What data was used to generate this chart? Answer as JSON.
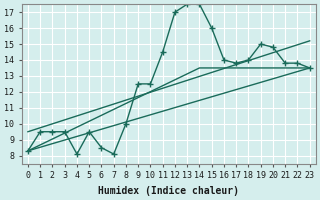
{
  "xlabel": "Humidex (Indice chaleur)",
  "ylabel": "",
  "bg_color": "#d5eeed",
  "grid_color": "#ffffff",
  "line_color": "#1a6b5a",
  "xlim": [
    -0.5,
    23.5
  ],
  "ylim": [
    7.5,
    17.5
  ],
  "xticks": [
    0,
    1,
    2,
    3,
    4,
    5,
    6,
    7,
    8,
    9,
    10,
    11,
    12,
    13,
    14,
    15,
    16,
    17,
    18,
    19,
    20,
    21,
    22,
    23
  ],
  "yticks": [
    8,
    9,
    10,
    11,
    12,
    13,
    14,
    15,
    16,
    17
  ],
  "curve1_x": [
    0,
    1,
    2,
    3,
    4,
    5,
    6,
    7,
    8,
    9,
    10,
    11,
    12,
    13,
    14,
    15,
    16,
    17,
    18,
    19,
    20,
    21,
    22,
    23
  ],
  "curve1_y": [
    8.3,
    9.5,
    9.5,
    9.5,
    8.1,
    9.5,
    8.5,
    8.1,
    10.0,
    12.5,
    12.5,
    14.5,
    17.0,
    17.5,
    17.5,
    16.0,
    14.0,
    13.8,
    14.0,
    15.0,
    14.8,
    13.8,
    13.8,
    13.5
  ],
  "curve2_x": [
    0,
    23
  ],
  "curve2_y": [
    8.3,
    13.5
  ],
  "curve3_x": [
    0,
    14,
    23
  ],
  "curve3_y": [
    8.3,
    13.5,
    13.5
  ],
  "curve4_x": [
    0,
    23
  ],
  "curve4_y": [
    9.5,
    15.2
  ]
}
